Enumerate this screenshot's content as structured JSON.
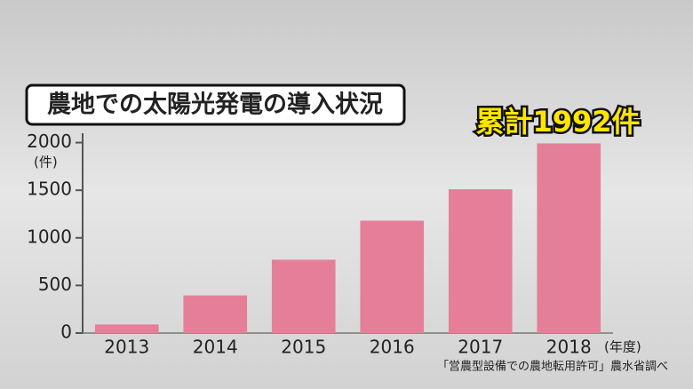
{
  "chart_data": {
    "type": "bar",
    "title": "農地での太陽光発電の導入状況",
    "y_unit": "(件)",
    "x_unit": "(年度)",
    "annotation": "累計1992件",
    "source": "「営農型設備での農地転用許可」農水省調べ",
    "categories": [
      "2013",
      "2014",
      "2015",
      "2016",
      "2017",
      "2018"
    ],
    "values": [
      90,
      395,
      770,
      1180,
      1510,
      1992
    ],
    "color": "#e57f97",
    "ylim": [
      0,
      2080
    ],
    "yticks": [
      0,
      500,
      1000,
      1500,
      2000
    ],
    "grid": false
  }
}
